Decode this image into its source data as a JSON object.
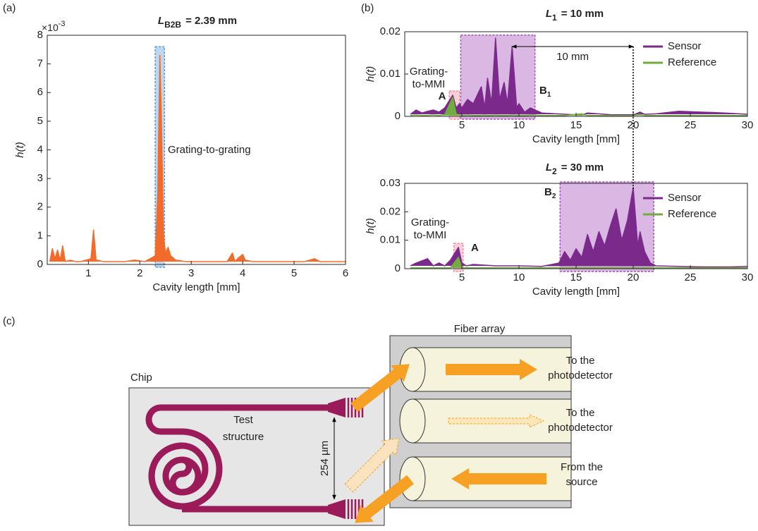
{
  "panel_labels": [
    "(a)",
    "(b)",
    "(c)"
  ],
  "chart_data": [
    {
      "type": "line",
      "title": "L",
      "title_subscript": "B2B",
      "title_suffix": "= 2.39 mm",
      "xlabel": "Cavity length [mm]",
      "ylabel": "h(t)",
      "y_multiplier": "×10",
      "y_multiplier_exponent": "-3",
      "xlim": [
        0.2,
        6
      ],
      "ylim": [
        0,
        0.008
      ],
      "xticks": [
        1,
        2,
        3,
        4,
        5,
        6
      ],
      "yticks": [
        0,
        {
          "value": 0.001,
          "label": "1"
        },
        {
          "value": 0.002,
          "label": "2"
        },
        {
          "value": 0.003,
          "label": "3"
        },
        {
          "value": 0.004,
          "label": "4"
        },
        {
          "value": 0.005,
          "label": "5"
        },
        {
          "value": 0.006,
          "label": "6"
        },
        {
          "value": 0.007,
          "label": "7"
        },
        {
          "value": 0.008,
          "label": "8"
        }
      ],
      "x": [
        0.25,
        0.3,
        0.35,
        0.4,
        0.45,
        0.5,
        0.55,
        0.65,
        0.75,
        0.85,
        0.95,
        1.05,
        1.1,
        1.15,
        1.3,
        1.5,
        1.7,
        1.9,
        2.1,
        2.3,
        2.35,
        2.39,
        2.42,
        2.46,
        2.5,
        2.55,
        2.6,
        2.7,
        2.9,
        3.1,
        3.4,
        3.7,
        3.8,
        3.85,
        3.9,
        4.0,
        4.05,
        4.2,
        4.5,
        4.9,
        5.2,
        5.4,
        5.5,
        5.7,
        6.0
      ],
      "series": [
        {
          "color": "#f26b2a",
          "values": [
            0.0001,
            0.00055,
            0.0002,
            0.0005,
            0.00015,
            0.00065,
            0.0001,
            0.00015,
            0.0001,
            0.0001,
            0.00015,
            0.0002,
            0.0012,
            0.00015,
            0.0001,
            0.0001,
            0.0001,
            0.00015,
            0.0001,
            0.0003,
            0.0025,
            0.0073,
            0.005,
            0.001,
            0.0004,
            0.0006,
            0.0003,
            0.00015,
            0.0001,
            0.0001,
            0.0001,
            0.0001,
            0.0004,
            0.0001,
            0.0002,
            0.00035,
            0.00015,
            0.0001,
            0.0001,
            0.0001,
            0.0001,
            0.0002,
            0.0001,
            0.0001,
            0.0001
          ]
        }
      ],
      "regions": [
        {
          "x0": 2.3,
          "x1": 2.48,
          "y0": 0,
          "y1": 0.0076,
          "color": "#5b9bd5"
        }
      ],
      "annotation": [
        "Grating-to-grating"
      ]
    },
    {
      "type": "line",
      "title": "L",
      "title_subscript": "1",
      "title_suffix": "= 10 mm",
      "xlabel": "Cavity length [mm]",
      "ylabel": "h(t)",
      "xlim": [
        0,
        30
      ],
      "ylim": [
        0,
        0.02
      ],
      "xticks": [
        5,
        10,
        15,
        20,
        25,
        30
      ],
      "yticks": [
        0,
        0.01,
        0.02
      ],
      "legend": "upper right",
      "x": [
        0.5,
        1,
        1.5,
        2,
        2.5,
        3,
        3.5,
        4.2,
        4.5,
        4.8,
        5,
        5.5,
        6,
        6.7,
        7,
        7.25,
        7.6,
        7.95,
        8.3,
        8.7,
        9,
        9.4,
        9.8,
        10,
        10.5,
        11,
        12,
        14,
        15.5,
        16,
        18,
        20,
        20.6,
        21,
        22,
        24,
        26,
        28,
        30
      ],
      "series": [
        {
          "name": "Sensor",
          "color": "#7b2a8c",
          "values": [
            0.0005,
            0.0015,
            0.0008,
            0.0012,
            0.0015,
            0.001,
            0.002,
            0.005,
            0.002,
            0.003,
            0.002,
            0.004,
            0.003,
            0.007,
            0.002,
            0.009,
            0.003,
            0.0185,
            0.004,
            0.008,
            0.003,
            0.0165,
            0.002,
            0.003,
            0.001,
            0.002,
            0.0008,
            0.0005,
            0.0003,
            0.0008,
            0.0004,
            0.0003,
            0.001,
            0.0005,
            0.0006,
            0.0012,
            0.001,
            0.0008,
            0.0005
          ]
        },
        {
          "name": "Reference",
          "color": "#6fae3c",
          "values": [
            0.0002,
            0.0003,
            0.0002,
            0.0002,
            0.0003,
            0.0002,
            0.0004,
            0.0045,
            0.0006,
            0.0003,
            0.0002,
            0.0003,
            0.0002,
            0.0002,
            0.0003,
            0.0002,
            0.0002,
            0.0003,
            0.0002,
            0.0002,
            0.0002,
            0.0003,
            0.0002,
            0.0002,
            0.0002,
            0.0003,
            0.0002,
            0.0002,
            0.0006,
            0.0002,
            0.0002,
            0.0002,
            0.0005,
            0.0002,
            0.0002,
            0.0002,
            0.0002,
            0.0002,
            0.0002
          ]
        }
      ],
      "regions": [
        {
          "x0": 3.9,
          "x1": 4.8,
          "y0": 0,
          "y1": 0.006,
          "color": "#f08a9a",
          "label": "A"
        },
        {
          "x0": 4.9,
          "x1": 11.4,
          "y0": 0,
          "y1": 0.0192,
          "color": "#a64db8",
          "label": "B",
          "label_subscript": "1"
        }
      ],
      "annotation": [
        "Grating-",
        "to-MMI"
      ],
      "span": {
        "x0": 9.4,
        "x1": 20,
        "y": 0.0165,
        "label": "10 mm"
      }
    },
    {
      "type": "line",
      "title": "L",
      "title_subscript": "2",
      "title_suffix": "= 30 mm",
      "xlabel": "Cavity length [mm]",
      "ylabel": "h(t)",
      "xlim": [
        0,
        30
      ],
      "ylim": [
        0,
        0.03
      ],
      "xticks": [
        5,
        10,
        15,
        20,
        25,
        30
      ],
      "yticks": [
        0,
        0.01,
        0.02,
        0.03
      ],
      "legend": "upper right",
      "x": [
        0.5,
        1,
        2,
        2.5,
        3,
        3.5,
        4,
        4.7,
        5,
        5.4,
        6,
        8,
        10,
        12,
        13.5,
        14,
        14.5,
        15,
        15.5,
        16,
        16.5,
        17,
        17.5,
        18,
        18.5,
        19,
        19.5,
        20,
        20.4,
        20.6,
        21,
        21.5,
        22,
        24,
        26,
        28,
        30
      ],
      "series": [
        {
          "name": "Sensor",
          "color": "#7b2a8c",
          "values": [
            0.001,
            0.002,
            0.0035,
            0.001,
            0.002,
            0.001,
            0.003,
            0.0075,
            0.002,
            0.001,
            0.0015,
            0.001,
            0.001,
            0.0008,
            0.002,
            0.006,
            0.003,
            0.007,
            0.004,
            0.012,
            0.006,
            0.013,
            0.008,
            0.015,
            0.021,
            0.01,
            0.017,
            0.0285,
            0.008,
            0.013,
            0.006,
            0.002,
            0.001,
            0.0008,
            0.0006,
            0.0005,
            0.0008
          ]
        },
        {
          "name": "Reference",
          "color": "#6fae3c",
          "values": [
            0.0003,
            0.0003,
            0.0003,
            0.0003,
            0.0003,
            0.0003,
            0.0003,
            0.004,
            0.0003,
            0.0003,
            0.0003,
            0.0003,
            0.0003,
            0.0003,
            0.0003,
            0.0003,
            0.0003,
            0.0003,
            0.0003,
            0.0003,
            0.0003,
            0.0003,
            0.0003,
            0.0003,
            0.0003,
            0.0003,
            0.0003,
            0.0003,
            0.0003,
            0.0003,
            0.0003,
            0.0003,
            0.0003,
            0.0003,
            0.0003,
            0.0003,
            0.0003
          ]
        }
      ],
      "regions": [
        {
          "x0": 4.3,
          "x1": 5.1,
          "y0": 0,
          "y1": 0.0089,
          "color": "#f08a9a",
          "label": "A"
        },
        {
          "x0": 13.6,
          "x1": 21.8,
          "y0": 0,
          "y1": 0.0305,
          "color": "#a64db8",
          "label": "B",
          "label_subscript": "2"
        }
      ],
      "annotation": [
        "Grating-",
        "to-MMI"
      ]
    }
  ],
  "diagram": {
    "chip": "Chip",
    "test_structure": [
      "Test",
      "structure"
    ],
    "spacing": "254 µm",
    "fiber_array": "Fiber array",
    "outputs": [
      [
        "To the",
        "photodetector"
      ],
      [
        "To the",
        "photodetector"
      ]
    ],
    "input": [
      "From the",
      "source"
    ]
  }
}
